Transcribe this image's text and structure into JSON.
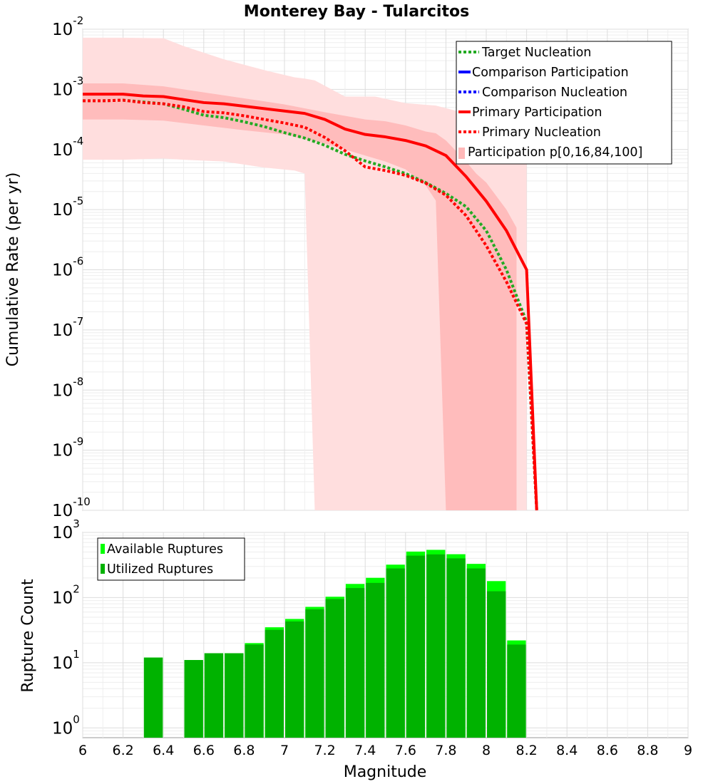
{
  "chart_data": [
    {
      "type": "line",
      "title": "Monterey Bay - Tularcitos",
      "xlabel": "Magnitude",
      "ylabel": "Cumulative Rate (per yr)",
      "xlim": [
        6,
        9
      ],
      "ylim_log10": [
        -10,
        -2
      ],
      "yscale": "log",
      "grid": true,
      "legend_position": "top-right",
      "series": [
        {
          "name": "Target Nucleation",
          "color": "#22aa22",
          "style": "dotted",
          "x": [
            6.0,
            6.1,
            6.2,
            6.3,
            6.4,
            6.5,
            6.6,
            6.7,
            6.8,
            6.9,
            7.0,
            7.1,
            7.2,
            7.3,
            7.4,
            7.5,
            7.6,
            7.7,
            7.8,
            7.9,
            8.0,
            8.1,
            8.2,
            8.25
          ],
          "log10_y": [
            -3.19,
            -3.19,
            -3.18,
            -3.21,
            -3.24,
            -3.33,
            -3.43,
            -3.47,
            -3.54,
            -3.62,
            -3.72,
            -3.81,
            -3.93,
            -4.08,
            -4.19,
            -4.29,
            -4.4,
            -4.55,
            -4.73,
            -4.95,
            -5.35,
            -6.0,
            -6.87,
            -10.1
          ]
        },
        {
          "name": "Comparison Participation",
          "color": "#0000ff",
          "style": "solid",
          "x": [],
          "log10_y": []
        },
        {
          "name": "Comparison Nucleation",
          "color": "#0000ff",
          "style": "dotted",
          "x": [],
          "log10_y": []
        },
        {
          "name": "Primary Participation",
          "color": "#ff0000",
          "style": "solid",
          "x": [
            6.0,
            6.1,
            6.2,
            6.3,
            6.4,
            6.5,
            6.6,
            6.7,
            6.8,
            6.9,
            7.0,
            7.1,
            7.2,
            7.3,
            7.4,
            7.5,
            7.6,
            7.7,
            7.8,
            7.9,
            8.0,
            8.1,
            8.2,
            8.25
          ],
          "log10_y": [
            -3.08,
            -3.08,
            -3.08,
            -3.11,
            -3.12,
            -3.17,
            -3.22,
            -3.24,
            -3.28,
            -3.32,
            -3.36,
            -3.4,
            -3.5,
            -3.66,
            -3.75,
            -3.79,
            -3.85,
            -3.94,
            -4.1,
            -4.45,
            -4.86,
            -5.35,
            -6.0,
            -10.1
          ]
        },
        {
          "name": "Primary Nucleation",
          "color": "#ff0000",
          "style": "dotted",
          "x": [
            6.0,
            6.1,
            6.2,
            6.3,
            6.4,
            6.5,
            6.6,
            6.7,
            6.8,
            6.9,
            7.0,
            7.1,
            7.2,
            7.3,
            7.4,
            7.5,
            7.6,
            7.7,
            7.8,
            7.9,
            8.0,
            8.1,
            8.2,
            8.25
          ],
          "log10_y": [
            -3.19,
            -3.19,
            -3.18,
            -3.22,
            -3.24,
            -3.29,
            -3.37,
            -3.39,
            -3.44,
            -3.5,
            -3.56,
            -3.63,
            -3.8,
            -4.02,
            -4.29,
            -4.35,
            -4.43,
            -4.56,
            -4.76,
            -5.1,
            -5.6,
            -6.2,
            -6.9,
            -10.1
          ]
        },
        {
          "name": "Participation p[0,16,84,100]",
          "color": "#ffb0b0",
          "style": "band"
        }
      ],
      "bands": [
        {
          "name": "p0-p100",
          "color": "#ffdede",
          "x": [
            6.0,
            6.2,
            6.4,
            6.5,
            6.7,
            6.9,
            7.05,
            7.1,
            7.15,
            7.3,
            7.45,
            7.6,
            7.75,
            7.9,
            8.0,
            8.1,
            8.15,
            8.2
          ],
          "log10_upper": [
            -2.14,
            -2.14,
            -2.15,
            -2.28,
            -2.5,
            -2.68,
            -2.8,
            -2.82,
            -2.85,
            -3.12,
            -3.12,
            -3.23,
            -3.27,
            -3.4,
            -3.6,
            -3.8,
            -3.9,
            -3.95
          ],
          "log10_lower": [
            -4.17,
            -4.17,
            -4.15,
            -4.17,
            -4.2,
            -4.3,
            -4.35,
            -4.4,
            -10.1,
            -10.1,
            -10.1,
            -10.1,
            -10.1,
            -10.1,
            -10.1,
            -10.1,
            -10.1,
            -10.1
          ]
        },
        {
          "name": "p16-p84",
          "color": "#ffbcbc",
          "x": [
            6.0,
            6.2,
            6.4,
            6.6,
            6.8,
            7.0,
            7.2,
            7.4,
            7.5,
            7.6,
            7.7,
            7.75,
            7.8,
            7.9,
            7.95,
            8.0,
            8.1,
            8.15
          ],
          "log10_upper": [
            -2.9,
            -2.9,
            -2.95,
            -3.05,
            -3.15,
            -3.25,
            -3.38,
            -3.5,
            -3.53,
            -3.6,
            -3.7,
            -3.73,
            -3.85,
            -4.2,
            -4.4,
            -4.55,
            -5.0,
            -5.3
          ],
          "log10_lower": [
            -3.5,
            -3.5,
            -3.52,
            -3.6,
            -3.68,
            -3.75,
            -3.9,
            -4.1,
            -4.2,
            -4.33,
            -4.6,
            -4.85,
            -10.1,
            -10.1,
            -10.1,
            -10.1,
            -10.1,
            -10.1
          ]
        }
      ],
      "y_ticks": [
        {
          "base": "10",
          "exp": "-2"
        },
        {
          "base": "10",
          "exp": "-3"
        },
        {
          "base": "10",
          "exp": "-4"
        },
        {
          "base": "10",
          "exp": "-5"
        },
        {
          "base": "10",
          "exp": "-6"
        },
        {
          "base": "10",
          "exp": "-7"
        },
        {
          "base": "10",
          "exp": "-8"
        },
        {
          "base": "10",
          "exp": "-9"
        },
        {
          "base": "10",
          "exp": "-10"
        }
      ]
    },
    {
      "type": "bar",
      "xlabel": "Magnitude",
      "ylabel": "Rupture Count",
      "xlim": [
        6,
        9
      ],
      "ylim_log10": [
        -0.15,
        3
      ],
      "yscale": "log",
      "grid": true,
      "legend_position": "top-left",
      "x_ticks": [
        "6",
        "6.2",
        "6.4",
        "6.6",
        "6.8",
        "7",
        "7.2",
        "7.4",
        "7.6",
        "7.8",
        "8",
        "8.2",
        "8.4",
        "8.6",
        "8.8",
        "9"
      ],
      "y_ticks": [
        {
          "base": "10",
          "exp": "0"
        },
        {
          "base": "10",
          "exp": "1"
        },
        {
          "base": "10",
          "exp": "2"
        },
        {
          "base": "10",
          "exp": "3"
        }
      ],
      "categories": [
        6.35,
        6.55,
        6.65,
        6.75,
        6.85,
        6.95,
        7.05,
        7.15,
        7.25,
        7.35,
        7.45,
        7.55,
        7.65,
        7.75,
        7.85,
        7.95,
        8.05,
        8.15
      ],
      "series": [
        {
          "name": "Available Ruptures",
          "color": "#00ff00",
          "values": [
            12,
            11,
            14,
            14,
            20,
            35,
            47,
            72,
            103,
            162,
            201,
            320,
            508,
            540,
            463,
            329,
            179,
            22
          ]
        },
        {
          "name": "Utilized Ruptures",
          "color": "#00b200",
          "values": [
            12,
            11,
            14,
            14,
            19,
            32,
            43,
            66,
            95,
            140,
            168,
            280,
            440,
            460,
            400,
            280,
            125,
            19
          ]
        }
      ]
    }
  ]
}
